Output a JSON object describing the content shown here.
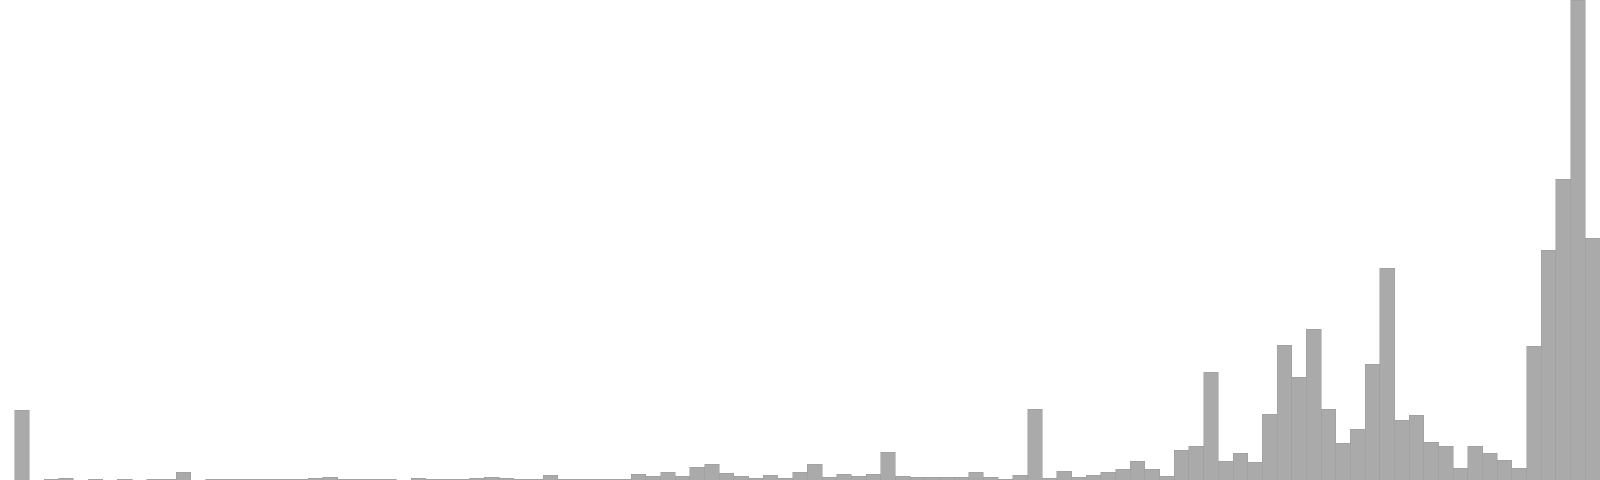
{
  "chart_data": {
    "type": "bar",
    "title": "",
    "xlabel": "",
    "ylabel": "",
    "ylim": [
      0,
      480
    ],
    "grid": false,
    "legend": "none",
    "bar_color": "#aaaaaa",
    "bar_edge_color": "#999999",
    "background": "#ffffff",
    "values": [
      0,
      70,
      0,
      1,
      2,
      0,
      1,
      0,
      1,
      0,
      1,
      1,
      8,
      0,
      1,
      1,
      1,
      1,
      1,
      1,
      1,
      2,
      3,
      1,
      1,
      1,
      1,
      0,
      2,
      1,
      1,
      1,
      2,
      3,
      2,
      1,
      1,
      5,
      1,
      1,
      1,
      1,
      1,
      6,
      4,
      8,
      4,
      13,
      16,
      7,
      4,
      2,
      5,
      2,
      8,
      16,
      3,
      6,
      4,
      6,
      28,
      4,
      3,
      3,
      3,
      3,
      8,
      3,
      1,
      5,
      71,
      2,
      9,
      3,
      5,
      8,
      11,
      19,
      11,
      4,
      30,
      34,
      108,
      19,
      27,
      18,
      66,
      135,
      103,
      151,
      71,
      37,
      51,
      116,
      212,
      60,
      65,
      38,
      34,
      12,
      34,
      27,
      20,
      12,
      134,
      230,
      301,
      480,
      242
    ]
  }
}
